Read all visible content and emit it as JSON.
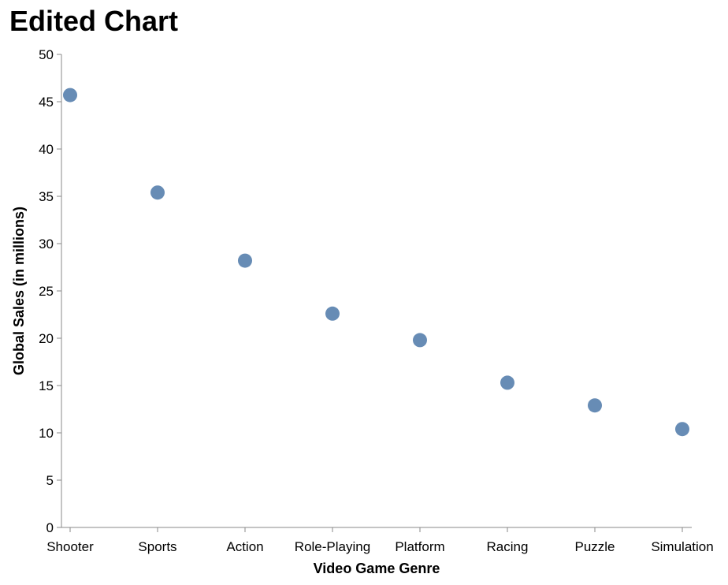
{
  "chart_data": {
    "type": "scatter",
    "title": "Edited Chart",
    "xlabel": "Video Game Genre",
    "ylabel": "Global Sales (in millions)",
    "categories": [
      "Shooter",
      "Sports",
      "Action",
      "Role-Playing",
      "Platform",
      "Racing",
      "Puzzle",
      "Simulation"
    ],
    "values": [
      45.7,
      35.4,
      28.2,
      22.6,
      19.8,
      15.3,
      12.9,
      10.4
    ],
    "ylim": [
      0,
      50
    ],
    "yticks": [
      0,
      5,
      10,
      15,
      20,
      25,
      30,
      35,
      40,
      45,
      50
    ],
    "grid": false,
    "point_color": "#4c78a8"
  }
}
